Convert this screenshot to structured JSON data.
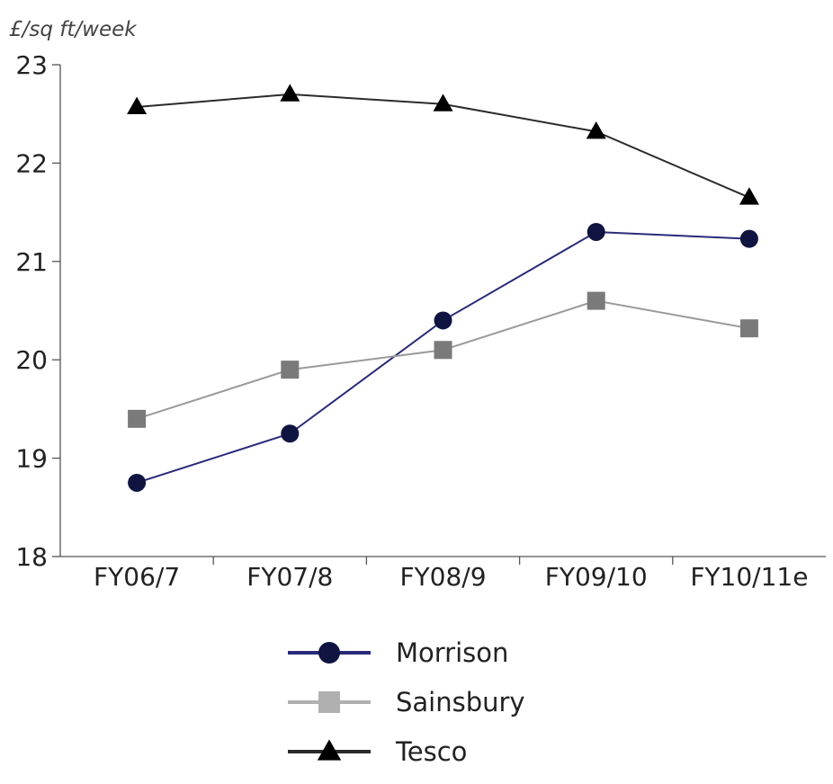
{
  "chart_data": {
    "type": "line",
    "title": "",
    "ylabel": "£/sq ft/week",
    "xlabel": "",
    "categories": [
      "FY06/7",
      "FY07/8",
      "FY08/9",
      "FY09/10",
      "FY10/11e"
    ],
    "ylim": [
      18,
      23
    ],
    "yticks": [
      18,
      19,
      20,
      21,
      22,
      23
    ],
    "grid": false,
    "legend_position": "bottom-center",
    "series": [
      {
        "name": "Morrison",
        "marker": "circle",
        "line_color": "#2a2a7a",
        "marker_color": "#0f1440",
        "values": [
          18.75,
          19.25,
          20.4,
          21.3,
          21.23
        ]
      },
      {
        "name": "Sainsbury",
        "marker": "square",
        "line_color": "#9a9a9a",
        "marker_color": "#7a7a7a",
        "legend_color": "#b0b0b0",
        "values": [
          19.4,
          19.9,
          20.1,
          20.6,
          20.32
        ]
      },
      {
        "name": "Tesco",
        "marker": "triangle",
        "line_color": "#2b2b2b",
        "marker_color": "#000000",
        "values": [
          22.57,
          22.7,
          22.6,
          22.32,
          21.65
        ]
      }
    ]
  }
}
